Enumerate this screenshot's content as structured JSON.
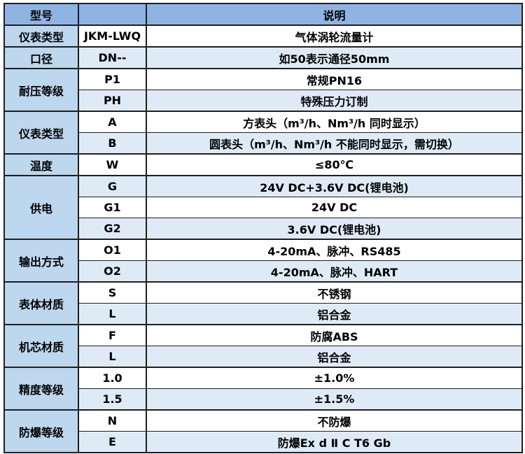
{
  "table": {
    "header": {
      "col1": "型号",
      "col2": "",
      "col3": "说明"
    },
    "groups": [
      {
        "category": "仪表类型",
        "rows": [
          {
            "code": "JKM-LWQ",
            "desc": "气体涡轮流量计"
          }
        ]
      },
      {
        "category": "口径",
        "rows": [
          {
            "code": "DN--",
            "desc": "如50表示通径50mm"
          }
        ]
      },
      {
        "category": "耐压等级",
        "rows": [
          {
            "code": "P1",
            "desc": "常规PN16"
          },
          {
            "code": "PH",
            "desc": "特殊压力订制"
          }
        ]
      },
      {
        "category": "仪表类型",
        "rows": [
          {
            "code": "A",
            "desc": "方表头（m³/h、Nm³/h 同时显示）"
          },
          {
            "code": "B",
            "desc": "圆表头（m³/h、Nm³/h 不能同时显示，需切换）"
          }
        ]
      },
      {
        "category": "温度",
        "rows": [
          {
            "code": "W",
            "desc": "≤80℃"
          }
        ]
      },
      {
        "category": "供电",
        "rows": [
          {
            "code": "G",
            "desc": "24V DC+3.6V DC(锂电池)"
          },
          {
            "code": "G1",
            "desc": "24V DC"
          },
          {
            "code": "G2",
            "desc": "3.6V DC(锂电池)"
          }
        ]
      },
      {
        "category": "输出方式",
        "rows": [
          {
            "code": "O1",
            "desc": "4-20mA、脉冲、RS485"
          },
          {
            "code": "O2",
            "desc": "4-20mA、脉冲、HART"
          }
        ]
      },
      {
        "category": "表体材质",
        "rows": [
          {
            "code": "S",
            "desc": "不锈钢"
          },
          {
            "code": "L",
            "desc": "铝合金"
          }
        ]
      },
      {
        "category": "机芯材质",
        "rows": [
          {
            "code": "F",
            "desc": "防腐ABS"
          },
          {
            "code": "L",
            "desc": "铝合金"
          }
        ]
      },
      {
        "category": "精度等级",
        "rows": [
          {
            "code": "1.0",
            "desc": "±1.0%"
          },
          {
            "code": "1.5",
            "desc": "±1.5%"
          }
        ]
      },
      {
        "category": "防爆等级",
        "rows": [
          {
            "code": "N",
            "desc": "不防爆"
          },
          {
            "code": "E",
            "desc": "防爆Ex d Ⅱ C T6 Gb"
          }
        ]
      }
    ],
    "colors": {
      "header_bg": "#8FB4E3",
      "category_bg": "#BDD7EE",
      "row_white_bg": "#FFFFFF",
      "row_blue_bg": "#DEEBF7",
      "border": "#1F1F1F",
      "text": "#000000"
    }
  }
}
